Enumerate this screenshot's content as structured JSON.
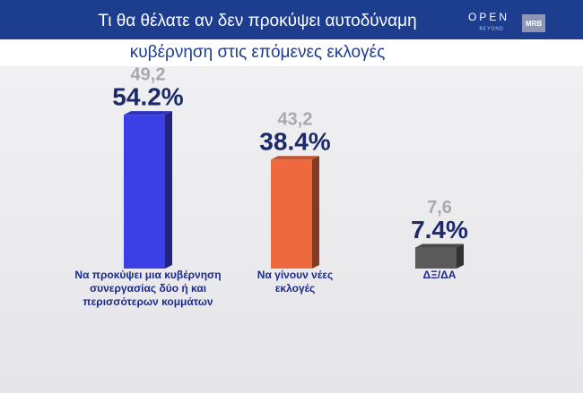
{
  "chart_data": {
    "type": "bar",
    "title": "Τι θα θέλατε αν δεν προκύψει αυτοδύναμη",
    "subtitle": "κυβέρνηση στις επόμενες  εκλογές",
    "logo": "OPEN",
    "logo_tagline": "BEYOND",
    "logo_2": "MRB",
    "categories": [
      "Να προκύψει μια κυβέρνηση συνεργασίας δύο ή και περισσότερων κομμάτων",
      "Να γίνουν νέες εκλογές",
      "ΔΞ/ΔΑ"
    ],
    "values": [
      54.2,
      38.4,
      7.4
    ],
    "value_labels": [
      "54.2%",
      "38.4%",
      "7.4%"
    ],
    "previous_values": [
      49.2,
      43.2,
      7.6
    ],
    "previous_value_labels": [
      "49,2",
      "43,2",
      "7,6"
    ],
    "colors": [
      "#3a3fe6",
      "#ee6a3e",
      "#5a5a5a"
    ]
  }
}
